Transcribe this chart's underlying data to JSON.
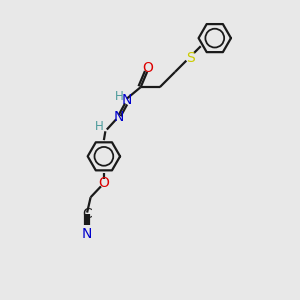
{
  "bg_color": "#e8e8e8",
  "bond_color": "#1a1a1a",
  "S_color": "#cccc00",
  "O_color": "#dd0000",
  "N_color": "#0000cc",
  "H_color": "#4a9a9a",
  "C_color": "#1a1a1a",
  "line_width": 1.6,
  "font_size": 8.5,
  "ring_r": 0.55,
  "figsize": [
    3.0,
    3.0
  ],
  "dpi": 100,
  "xlim": [
    0,
    10
  ],
  "ylim": [
    0,
    10
  ]
}
